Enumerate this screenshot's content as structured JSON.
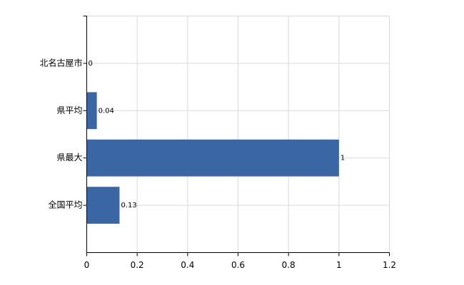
{
  "chart_data": {
    "type": "hbar",
    "categories": [
      "北名古屋市",
      "県平均",
      "県最大",
      "全国平均"
    ],
    "values": [
      0,
      0.04,
      1,
      0.13
    ],
    "color": "#3a66a3",
    "xlim": [
      0,
      1.2
    ],
    "xticks": [
      0,
      0.2,
      0.4,
      0.6,
      0.8,
      1,
      1.2
    ],
    "grid": true
  }
}
